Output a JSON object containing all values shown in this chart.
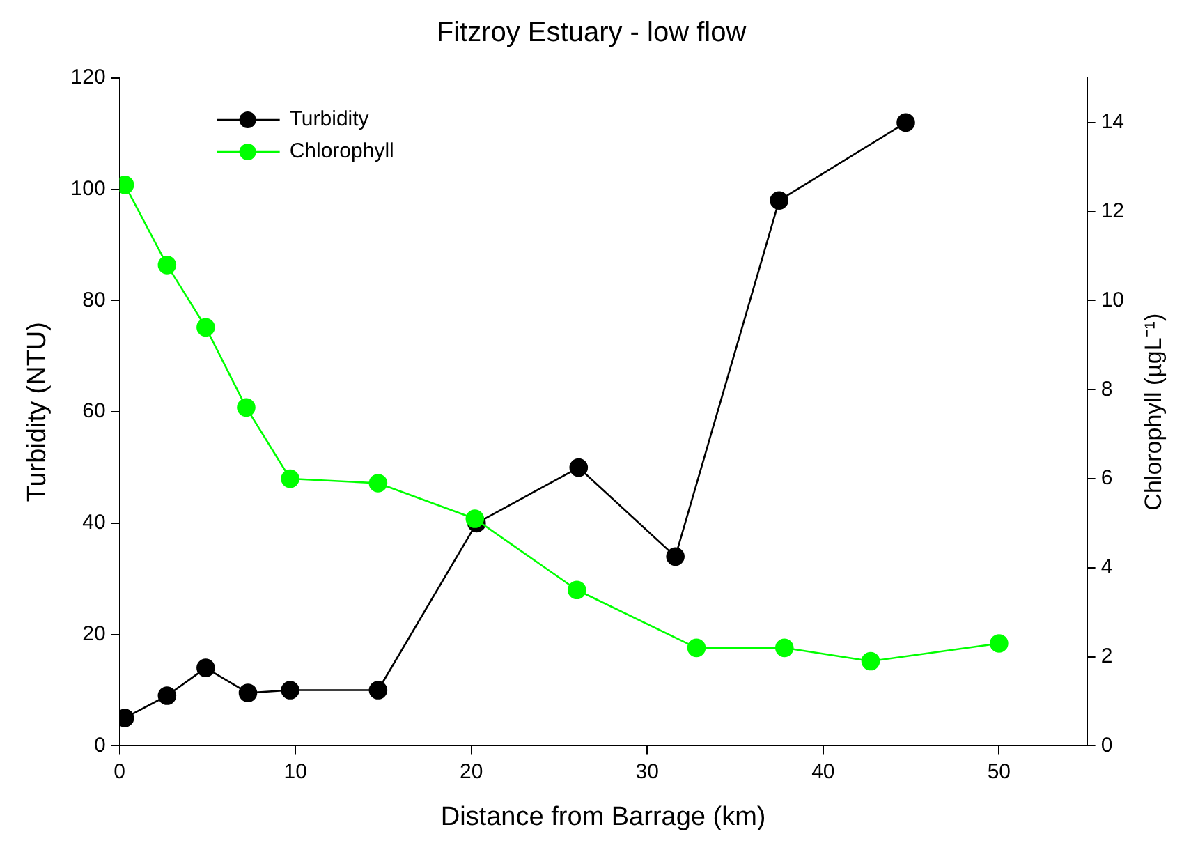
{
  "chart_data": {
    "type": "line",
    "title": "Fitzroy Estuary - low flow",
    "xlabel": "Distance from Barrage (km)",
    "ylabel": "Turbidity (NTU)",
    "y2label": "Chlorophyll (µgL⁻¹)",
    "xlim": [
      0,
      55
    ],
    "xticks": [
      0,
      10,
      20,
      30,
      40,
      50
    ],
    "ylim": [
      0,
      120
    ],
    "yticks": [
      0,
      20,
      40,
      60,
      80,
      100,
      120
    ],
    "y2lim": [
      0,
      15
    ],
    "y2ticks": [
      0,
      2,
      4,
      6,
      8,
      10,
      12,
      14
    ],
    "grid": false,
    "legend": "top left",
    "marker": "circle",
    "line_style": "solid",
    "series": [
      {
        "name": "Turbidity",
        "color": "#000000",
        "x": [
          0.3,
          2.7,
          4.9,
          7.3,
          9.7,
          14.7,
          20.3,
          26.1,
          31.6,
          37.5,
          44.7
        ],
        "values": [
          5,
          9,
          14,
          9.5,
          10,
          10,
          40,
          50,
          34,
          98,
          112
        ]
      },
      {
        "name": "Chlorophyll",
        "color": "#00ff00",
        "axis": "y2",
        "x": [
          0.3,
          2.7,
          4.9,
          7.2,
          9.7,
          14.7,
          20.2,
          26,
          32.8,
          37.8,
          42.7,
          50
        ],
        "values": [
          12.6,
          10.8,
          9.4,
          7.6,
          6,
          5.9,
          5.1,
          3.5,
          2.2,
          2.2,
          1.9,
          2.3
        ]
      }
    ]
  }
}
